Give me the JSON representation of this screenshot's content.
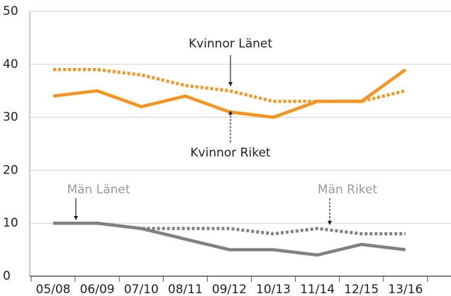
{
  "chart_data": {
    "type": "line",
    "categories": [
      "05/08",
      "06/09",
      "07/10",
      "08/11",
      "09/12",
      "10/13",
      "11/14",
      "12/15",
      "13/16"
    ],
    "series": [
      {
        "name": "Kvinnor Länet",
        "color": "#f7941d",
        "dashed": false,
        "values": [
          34,
          35,
          32,
          34,
          31,
          30,
          33,
          33,
          39
        ]
      },
      {
        "name": "Kvinnor Riket",
        "color": "#f7941d",
        "dashed": true,
        "values": [
          39,
          39,
          38,
          36,
          35,
          33,
          33,
          33,
          35
        ]
      },
      {
        "name": "Män Länet",
        "color": "#808080",
        "dashed": false,
        "values": [
          10,
          10,
          9,
          7,
          5,
          5,
          4,
          6,
          5
        ]
      },
      {
        "name": "Män Riket",
        "color": "#808080",
        "dashed": true,
        "values": [
          10,
          10,
          9,
          9,
          9,
          8,
          9,
          8,
          8
        ]
      }
    ],
    "ylim": [
      0,
      50
    ],
    "yticks": [
      0,
      10,
      20,
      30,
      40,
      50
    ],
    "grid": true
  }
}
